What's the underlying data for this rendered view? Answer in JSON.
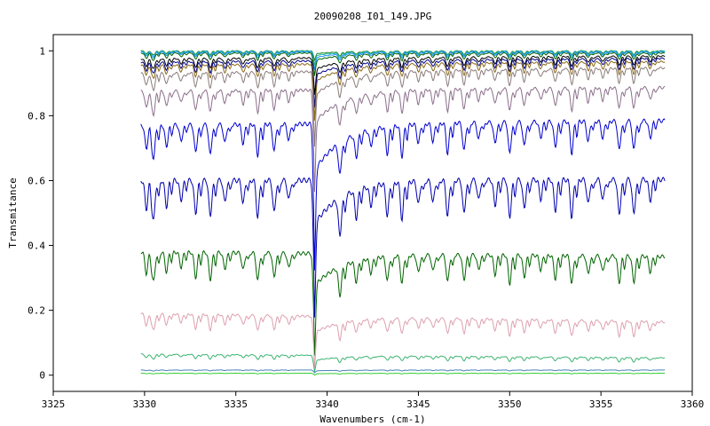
{
  "chart_data": {
    "type": "line",
    "title": "20090208_I01_149.JPG",
    "xlabel": "Wavenumbers (cm-1)",
    "ylabel": "Transmitance",
    "xlim": [
      3325,
      3360
    ],
    "ylim": [
      -0.05,
      1.05
    ],
    "x_ticks": [
      3325,
      3330,
      3335,
      3340,
      3345,
      3350,
      3355,
      3360
    ],
    "x_tick_labels": [
      "3325",
      "3330",
      "3335",
      "3340",
      "3345",
      "3350",
      "3355",
      "3360"
    ],
    "y_ticks": [
      0,
      0.2,
      0.4,
      0.6,
      0.8,
      1
    ],
    "y_tick_labels": [
      "0",
      "0.2",
      "0.4",
      "0.6",
      "0.8",
      "1"
    ],
    "grid": false,
    "legend": "none",
    "x_range": [
      3329.8,
      3358.5
    ],
    "dip_wavenumbers": [
      3330.1,
      3330.5,
      3331.2,
      3332.0,
      3332.8,
      3333.6,
      3334.4,
      3335.4,
      3336.2,
      3337.1,
      3337.9,
      3339.3,
      3340.7,
      3341.6,
      3342.4,
      3343.3,
      3344.1,
      3345.0,
      3345.8,
      3346.6,
      3347.5,
      3348.3,
      3349.2,
      3350.0,
      3350.8,
      3351.7,
      3352.5,
      3353.4,
      3354.3,
      3355.1,
      3356.0,
      3356.8,
      3357.7
    ],
    "series": [
      {
        "color": "#228b22",
        "baseline": 1.0,
        "slope": 0.0,
        "depth": 0.012,
        "strong_dip": 0.02
      },
      {
        "color": "#20b2aa",
        "baseline": 0.999,
        "slope": 0.0,
        "depth": 0.015,
        "strong_dip": 0.03
      },
      {
        "color": "#1e90ff",
        "baseline": 0.997,
        "slope": 0.0,
        "depth": 0.018,
        "strong_dip": 0.04
      },
      {
        "color": "#006400",
        "baseline": 0.993,
        "slope": 0.0,
        "depth": 0.022,
        "strong_dip": 0.05
      },
      {
        "color": "#000000",
        "baseline": 0.975,
        "slope": 0.0003,
        "depth": 0.03,
        "strong_dip": 0.08
      },
      {
        "color": "#00008b",
        "baseline": 0.965,
        "slope": 0.0004,
        "depth": 0.035,
        "strong_dip": 0.1
      },
      {
        "color": "#8b6914",
        "baseline": 0.955,
        "slope": 0.0004,
        "depth": 0.04,
        "strong_dip": 0.12
      },
      {
        "color": "#8b7b7b",
        "baseline": 0.93,
        "slope": 0.0006,
        "depth": 0.05,
        "strong_dip": 0.16
      },
      {
        "color": "#8b6f8b",
        "baseline": 0.875,
        "slope": 0.0004,
        "depth": 0.07,
        "strong_dip": 0.22
      },
      {
        "color": "#0000cd",
        "baseline": 0.77,
        "slope": 0.0005,
        "depth": 0.1,
        "strong_dip": 0.32
      },
      {
        "color": "#0000ad",
        "baseline": 0.6,
        "slope": 0.0001,
        "depth": 0.12,
        "strong_dip": 0.3
      },
      {
        "color": "#006400",
        "baseline": 0.38,
        "slope": -0.0005,
        "depth": 0.09,
        "strong_dip": 0.22
      },
      {
        "color": "#dda0b0",
        "baseline": 0.19,
        "slope": -0.0009,
        "depth": 0.05,
        "strong_dip": 0.11
      },
      {
        "color": "#3cb371",
        "baseline": 0.065,
        "slope": -0.0004,
        "depth": 0.015,
        "strong_dip": 0.035
      },
      {
        "color": "#4682b4",
        "baseline": 0.016,
        "slope": 0.0,
        "depth": 0.003,
        "strong_dip": 0.006
      },
      {
        "color": "#32cd32",
        "baseline": 0.006,
        "slope": 0.0,
        "depth": 0.002,
        "strong_dip": 0.004
      }
    ]
  }
}
